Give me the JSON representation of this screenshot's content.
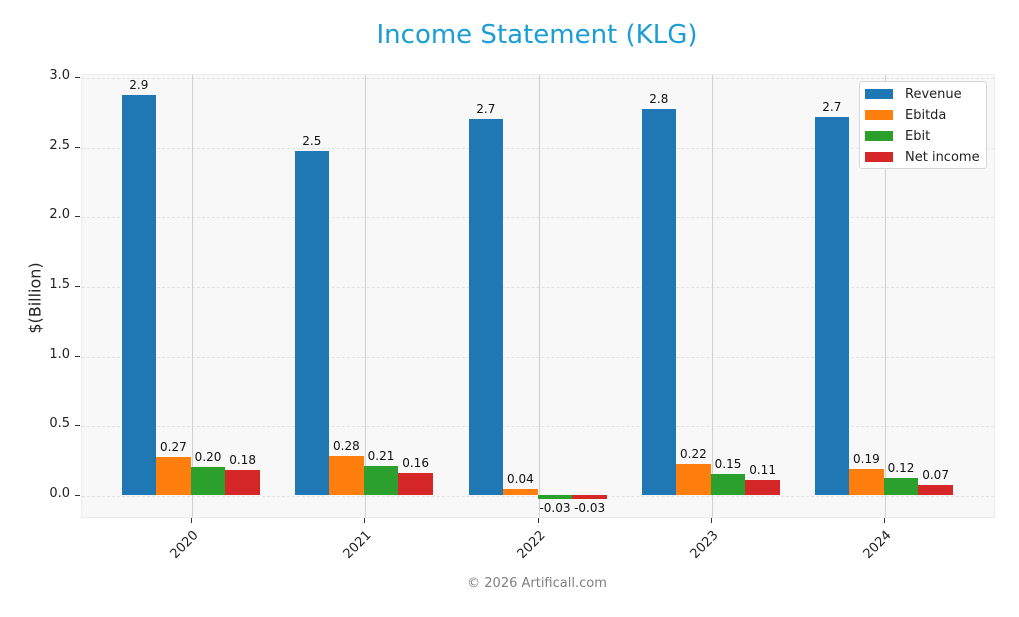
{
  "title": "Income Statement (KLG)",
  "footer": "© 2026 Artificall.com",
  "chart_data": {
    "type": "bar",
    "title": "Income Statement (KLG)",
    "xlabel": "",
    "ylabel": "$(Billion)",
    "ylim": [
      -0.17,
      3.02
    ],
    "yticks": [
      "0.0",
      "0.5",
      "1.0",
      "1.5",
      "2.0",
      "2.5",
      "3.0"
    ],
    "categories": [
      "2020",
      "2021",
      "2022",
      "2023",
      "2024"
    ],
    "grid": true,
    "legend_position": "upper right",
    "series": [
      {
        "name": "Revenue",
        "color": "#1f77b4",
        "values": [
          2.87,
          2.47,
          2.7,
          2.77,
          2.71
        ],
        "labels": [
          "2.9",
          "2.5",
          "2.7",
          "2.8",
          "2.7"
        ]
      },
      {
        "name": "Ebitda",
        "color": "#ff7f0e",
        "values": [
          0.27,
          0.28,
          0.04,
          0.22,
          0.19
        ],
        "labels": [
          "0.27",
          "0.28",
          "0.04",
          "0.22",
          "0.19"
        ]
      },
      {
        "name": "Ebit",
        "color": "#2ca02c",
        "values": [
          0.2,
          0.21,
          -0.03,
          0.15,
          0.12
        ],
        "labels": [
          "0.20",
          "0.21",
          "-0.03",
          "0.15",
          "0.12"
        ]
      },
      {
        "name": "Net income",
        "color": "#d62728",
        "values": [
          0.18,
          0.16,
          -0.03,
          0.11,
          0.07
        ],
        "labels": [
          "0.18",
          "0.16",
          "-0.03",
          "0.11",
          "0.07"
        ]
      }
    ]
  }
}
